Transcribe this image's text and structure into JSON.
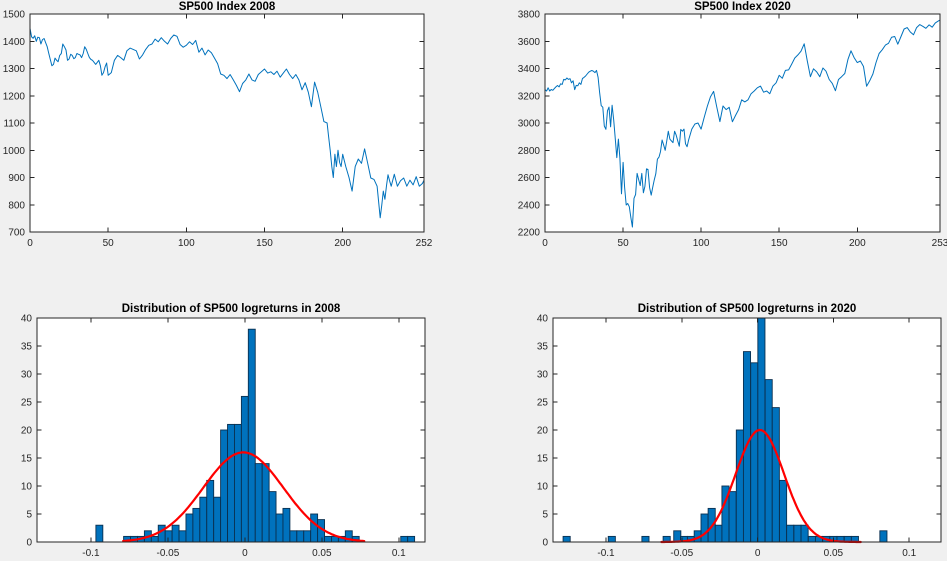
{
  "figure": {
    "background": "#F0F0F0",
    "plot_background": "#FFFFFF",
    "axis_color": "#262626",
    "line_color": "#0072BD",
    "bar_fill": "#0072BD",
    "bar_edge": "#0A3050",
    "curve_color": "#FF0000"
  },
  "chart_data": [
    {
      "id": "sp500-2008",
      "type": "line",
      "title": "SP500 Index 2008",
      "xlim": [
        0,
        252
      ],
      "ylim": [
        700,
        1500
      ],
      "xticks": [
        0,
        50,
        100,
        150,
        200,
        252
      ],
      "xtick_labels": [
        "0",
        "50",
        "100",
        "150",
        "200",
        "252"
      ],
      "yticks": [
        700,
        800,
        900,
        1000,
        1100,
        1200,
        1300,
        1400,
        1500
      ],
      "ytick_labels": [
        "700",
        "800",
        "900",
        "1000",
        "1100",
        "1200",
        "1300",
        "1400",
        "1500"
      ],
      "x": [
        0,
        1,
        2,
        3,
        4,
        5,
        6,
        7,
        8,
        9,
        10,
        11,
        12,
        13,
        14,
        15,
        16,
        17,
        18,
        19,
        20,
        21,
        22,
        23,
        24,
        25,
        26,
        27,
        28,
        29,
        30,
        31,
        32,
        33,
        34,
        35,
        36,
        37,
        38,
        39,
        40,
        42,
        44,
        45,
        46,
        47,
        48,
        49,
        50,
        51,
        52,
        54,
        56,
        58,
        60,
        62,
        64,
        66,
        68,
        70,
        72,
        74,
        76,
        78,
        80,
        82,
        84,
        86,
        88,
        90,
        92,
        94,
        96,
        98,
        100,
        102,
        104,
        106,
        108,
        110,
        112,
        114,
        116,
        118,
        120,
        122,
        124,
        126,
        128,
        130,
        132,
        134,
        136,
        138,
        140,
        142,
        144,
        146,
        148,
        150,
        152,
        154,
        156,
        158,
        160,
        162,
        164,
        166,
        168,
        170,
        172,
        174,
        176,
        178,
        180,
        182,
        184,
        186,
        188,
        190,
        191,
        192,
        193,
        194,
        195,
        196,
        197,
        198,
        199,
        200,
        202,
        204,
        206,
        208,
        210,
        212,
        214,
        216,
        218,
        220,
        222,
        224,
        225,
        226,
        227,
        228,
        229,
        230,
        231,
        233,
        235,
        237,
        239,
        241,
        243,
        245,
        247,
        249,
        251,
        252
      ],
      "y": [
        1447,
        1416,
        1411,
        1420,
        1400,
        1415,
        1413,
        1390,
        1406,
        1410,
        1395,
        1380,
        1355,
        1333,
        1310,
        1315,
        1338,
        1330,
        1325,
        1348,
        1355,
        1390,
        1380,
        1368,
        1330,
        1335,
        1352,
        1348,
        1336,
        1340,
        1355,
        1352,
        1350,
        1340,
        1355,
        1380,
        1370,
        1355,
        1340,
        1333,
        1330,
        1315,
        1330,
        1310,
        1275,
        1285,
        1305,
        1320,
        1275,
        1280,
        1285,
        1330,
        1348,
        1340,
        1330,
        1365,
        1375,
        1370,
        1365,
        1335,
        1350,
        1370,
        1385,
        1390,
        1408,
        1398,
        1413,
        1400,
        1390,
        1410,
        1423,
        1418,
        1388,
        1378,
        1385,
        1398,
        1388,
        1403,
        1360,
        1375,
        1350,
        1368,
        1358,
        1338,
        1318,
        1280,
        1275,
        1263,
        1278,
        1258,
        1238,
        1215,
        1245,
        1258,
        1280,
        1258,
        1253,
        1278,
        1288,
        1298,
        1283,
        1288,
        1278,
        1290,
        1268,
        1283,
        1298,
        1278,
        1263,
        1278,
        1258,
        1222,
        1248,
        1213,
        1160,
        1250,
        1213,
        1160,
        1105,
        1100,
        1050,
        1000,
        940,
        900,
        985,
        940,
        1000,
        955,
        940,
        985,
        940,
        900,
        850,
        940,
        968,
        952,
        1005,
        952,
        898,
        893,
        868,
        752,
        800,
        850,
        820,
        870,
        910,
        888,
        868,
        912,
        868,
        888,
        898,
        868,
        890,
        873,
        903,
        868,
        878,
        890
      ]
    },
    {
      "id": "sp500-2020",
      "type": "line",
      "title": "SP500 Index 2020",
      "xlim": [
        0,
        253
      ],
      "ylim": [
        2200,
        3800
      ],
      "xticks": [
        0,
        50,
        100,
        150,
        200,
        253
      ],
      "xtick_labels": [
        "0",
        "50",
        "100",
        "150",
        "200",
        "253"
      ],
      "yticks": [
        2200,
        2400,
        2600,
        2800,
        3000,
        3200,
        3400,
        3600,
        3800
      ],
      "ytick_labels": [
        "2200",
        "2400",
        "2600",
        "2800",
        "3000",
        "3200",
        "3400",
        "3600",
        "3800"
      ],
      "x": [
        0,
        1,
        2,
        3,
        4,
        5,
        6,
        7,
        8,
        9,
        10,
        11,
        12,
        13,
        14,
        15,
        16,
        17,
        18,
        19,
        20,
        21,
        22,
        23,
        24,
        25,
        26,
        27,
        28,
        29,
        30,
        31,
        32,
        33,
        34,
        35,
        36,
        37,
        38,
        39,
        40,
        41,
        42,
        43,
        44,
        45,
        46,
        47,
        48,
        49,
        50,
        51,
        52,
        53,
        54,
        55,
        56,
        57,
        58,
        59,
        60,
        61,
        62,
        63,
        64,
        65,
        66,
        67,
        68,
        69,
        70,
        71,
        72,
        73,
        74,
        75,
        76,
        77,
        78,
        79,
        80,
        81,
        82,
        83,
        84,
        85,
        86,
        87,
        88,
        89,
        90,
        91,
        92,
        94,
        96,
        98,
        100,
        102,
        104,
        106,
        108,
        110,
        112,
        114,
        116,
        118,
        120,
        122,
        124,
        126,
        128,
        130,
        132,
        134,
        136,
        138,
        140,
        142,
        144,
        146,
        148,
        150,
        152,
        154,
        156,
        158,
        160,
        162,
        164,
        166,
        168,
        170,
        172,
        174,
        176,
        178,
        180,
        182,
        184,
        186,
        188,
        190,
        192,
        194,
        196,
        198,
        200,
        202,
        204,
        206,
        208,
        210,
        212,
        214,
        216,
        218,
        220,
        222,
        224,
        226,
        228,
        230,
        232,
        234,
        236,
        238,
        240,
        242,
        244,
        246,
        248,
        250,
        252,
        253
      ],
      "y": [
        3245,
        3235,
        3258,
        3235,
        3246,
        3240,
        3253,
        3265,
        3275,
        3265,
        3288,
        3283,
        3320,
        3316,
        3330,
        3320,
        3325,
        3295,
        3310,
        3245,
        3276,
        3273,
        3295,
        3283,
        3327,
        3335,
        3345,
        3360,
        3373,
        3380,
        3385,
        3380,
        3370,
        3386,
        3335,
        3225,
        3128,
        3116,
        2978,
        2954,
        3090,
        3117,
        2972,
        3130,
        3023,
        2882,
        2746,
        2882,
        2741,
        2480,
        2711,
        2529,
        2398,
        2409,
        2386,
        2304,
        2237,
        2447,
        2475,
        2630,
        2584,
        2541,
        2630,
        2488,
        2535,
        2663,
        2659,
        2526,
        2471,
        2527,
        2584,
        2627,
        2734,
        2750,
        2790,
        2875,
        2837,
        2800,
        2870,
        2940,
        2881,
        2868,
        2856,
        2940,
        2913,
        2870,
        2830,
        2953,
        2940,
        2955,
        2847,
        2826,
        2875,
        2955,
        2993,
        3000,
        2955,
        3041,
        3125,
        3193,
        3232,
        3120,
        3010,
        3125,
        3098,
        3115,
        3009,
        3055,
        3098,
        3170,
        3155,
        3170,
        3215,
        3235,
        3258,
        3271,
        3226,
        3235,
        3215,
        3271,
        3295,
        3350,
        3328,
        3386,
        3390,
        3432,
        3477,
        3500,
        3527,
        3581,
        3455,
        3340,
        3398,
        3375,
        3340,
        3404,
        3380,
        3319,
        3291,
        3237,
        3319,
        3340,
        3363,
        3465,
        3530,
        3480,
        3443,
        3455,
        3415,
        3270,
        3310,
        3360,
        3443,
        3510,
        3537,
        3572,
        3585,
        3630,
        3635,
        3578,
        3635,
        3690,
        3700,
        3668,
        3647,
        3700,
        3722,
        3710,
        3695,
        3720,
        3703,
        3735,
        3749,
        3756
      ]
    },
    {
      "id": "logreturns-2008",
      "type": "histogram",
      "title": "Distribution of SP500 logreturns in 2008",
      "xlim": [
        -0.135,
        0.117
      ],
      "ylim": [
        0,
        40
      ],
      "xticks": [
        -0.1,
        -0.05,
        0,
        0.05,
        0.1
      ],
      "xtick_labels": [
        "-0.1",
        "-0.05",
        "0",
        "0.05",
        "0.1"
      ],
      "yticks": [
        0,
        5,
        10,
        15,
        20,
        25,
        30,
        35,
        40
      ],
      "ytick_labels": [
        "0",
        "5",
        "10",
        "15",
        "20",
        "25",
        "30",
        "35",
        "40"
      ],
      "bin_width": 0.0045,
      "bars": {
        "centers": [
          -0.0945,
          -0.0765,
          -0.072,
          -0.0675,
          -0.063,
          -0.0585,
          -0.054,
          -0.0495,
          -0.045,
          -0.0405,
          -0.036,
          -0.0315,
          -0.027,
          -0.0225,
          -0.018,
          -0.0135,
          -0.009,
          -0.0045,
          0.0,
          0.0045,
          0.009,
          0.0135,
          0.018,
          0.0225,
          0.027,
          0.0315,
          0.036,
          0.0405,
          0.045,
          0.0495,
          0.054,
          0.0585,
          0.063,
          0.0675,
          0.072,
          0.1035,
          0.108
        ],
        "counts": [
          3,
          1,
          1,
          1,
          2,
          1,
          3,
          2,
          3,
          2,
          5,
          6,
          8,
          11,
          8,
          20,
          21,
          21,
          26,
          38,
          14,
          14,
          9,
          5,
          6,
          2,
          2,
          2,
          5,
          4,
          1,
          1,
          1,
          2,
          1,
          1,
          1
        ]
      },
      "normal_curve": {
        "amplitude": 16,
        "mean": -0.001,
        "sigma": 0.026,
        "range": [
          -0.079,
          0.0775
        ]
      }
    },
    {
      "id": "logreturns-2020",
      "type": "histogram",
      "title": "Distribution of SP500 logreturns in 2020",
      "xlim": [
        -0.135,
        0.121
      ],
      "ylim": [
        0,
        40
      ],
      "xticks": [
        -0.1,
        -0.05,
        0,
        0.05,
        0.1
      ],
      "xtick_labels": [
        "-0.1",
        "-0.05",
        "0",
        "0.05",
        "0.1"
      ],
      "yticks": [
        0,
        5,
        10,
        15,
        20,
        25,
        30,
        35,
        40
      ],
      "ytick_labels": [
        "0",
        "5",
        "10",
        "15",
        "20",
        "25",
        "30",
        "35",
        "40"
      ],
      "bin_width": 0.0047,
      "bars": {
        "centers": [
          -0.126,
          -0.0962,
          -0.074,
          -0.06,
          -0.053,
          -0.0485,
          -0.044,
          -0.0395,
          -0.035,
          -0.0303,
          -0.0256,
          -0.0212,
          -0.0165,
          -0.0117,
          -0.007,
          -0.0022,
          0.0025,
          0.0073,
          0.012,
          0.0168,
          0.0215,
          0.0263,
          0.031,
          0.0358,
          0.0405,
          0.0453,
          0.05,
          0.0547,
          0.0595,
          0.0642,
          0.083
        ],
        "counts": [
          1,
          1,
          1,
          1,
          2,
          1,
          1,
          2,
          5,
          6,
          3,
          10,
          9,
          20,
          34,
          32,
          40,
          29,
          24,
          11,
          3,
          3,
          3,
          1,
          1,
          1,
          1,
          1,
          1,
          1,
          2
        ]
      },
      "normal_curve": {
        "amplitude": 20,
        "mean": 0.0015,
        "sigma": 0.016,
        "range": [
          -0.0635,
          0.068
        ]
      }
    }
  ]
}
